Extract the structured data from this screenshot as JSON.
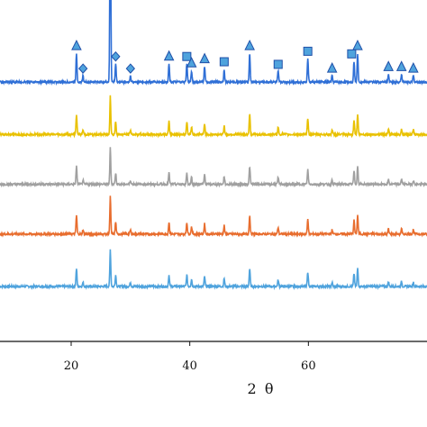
{
  "chart_data": {
    "type": "line",
    "title": "",
    "xlabel": "2 θ",
    "ylabel": "",
    "xlim": [
      8,
      80
    ],
    "ylim": [
      0,
      6
    ],
    "x_ticks": [
      20,
      40,
      60
    ],
    "x_tick_labels": [
      "20",
      "40",
      "60"
    ],
    "grid": false,
    "legend": "none",
    "series": [
      {
        "color": "#2f6fd6",
        "baseline": 4.95,
        "peak_scale": 1.0
      },
      {
        "color": "#e9c100",
        "baseline": 3.95,
        "peak_scale": 0.7
      },
      {
        "color": "#a0a0a0",
        "baseline": 3.0,
        "peak_scale": 0.62
      },
      {
        "color": "#e86d2e",
        "baseline": 2.05,
        "peak_scale": 0.65
      },
      {
        "color": "#4fa3dd",
        "baseline": 1.05,
        "peak_scale": 0.62
      }
    ],
    "peaks": [
      {
        "x": 20.9,
        "h": 0.55
      },
      {
        "x": 22.0,
        "h": 0.12
      },
      {
        "x": 26.6,
        "h": 4.1
      },
      {
        "x": 27.5,
        "h": 0.35
      },
      {
        "x": 30.0,
        "h": 0.12
      },
      {
        "x": 36.5,
        "h": 0.35
      },
      {
        "x": 39.5,
        "h": 0.35
      },
      {
        "x": 40.3,
        "h": 0.22
      },
      {
        "x": 42.5,
        "h": 0.3
      },
      {
        "x": 45.8,
        "h": 0.25
      },
      {
        "x": 50.1,
        "h": 0.55
      },
      {
        "x": 54.9,
        "h": 0.2
      },
      {
        "x": 59.9,
        "h": 0.45
      },
      {
        "x": 64.0,
        "h": 0.12
      },
      {
        "x": 67.7,
        "h": 0.4
      },
      {
        "x": 68.3,
        "h": 0.55
      },
      {
        "x": 73.5,
        "h": 0.15
      },
      {
        "x": 75.7,
        "h": 0.15
      },
      {
        "x": 77.7,
        "h": 0.12
      }
    ],
    "markers": [
      {
        "x": 20.9,
        "shape": "triangle"
      },
      {
        "x": 22.0,
        "shape": "diamond"
      },
      {
        "x": 26.6,
        "shape": "triangle"
      },
      {
        "x": 27.5,
        "shape": "diamond"
      },
      {
        "x": 30.0,
        "shape": "diamond"
      },
      {
        "x": 36.5,
        "shape": "triangle"
      },
      {
        "x": 39.5,
        "shape": "square"
      },
      {
        "x": 40.3,
        "shape": "triangle"
      },
      {
        "x": 42.5,
        "shape": "triangle"
      },
      {
        "x": 45.8,
        "shape": "square"
      },
      {
        "x": 50.1,
        "shape": "triangle"
      },
      {
        "x": 54.9,
        "shape": "square"
      },
      {
        "x": 59.9,
        "shape": "square"
      },
      {
        "x": 64.0,
        "shape": "triangle"
      },
      {
        "x": 67.3,
        "shape": "square"
      },
      {
        "x": 68.3,
        "shape": "triangle"
      },
      {
        "x": 73.5,
        "shape": "triangle"
      },
      {
        "x": 75.7,
        "shape": "triangle"
      },
      {
        "x": 77.7,
        "shape": "triangle"
      }
    ],
    "marker_fill": "#4fa3dd",
    "marker_stroke": "#1f4fa8"
  }
}
